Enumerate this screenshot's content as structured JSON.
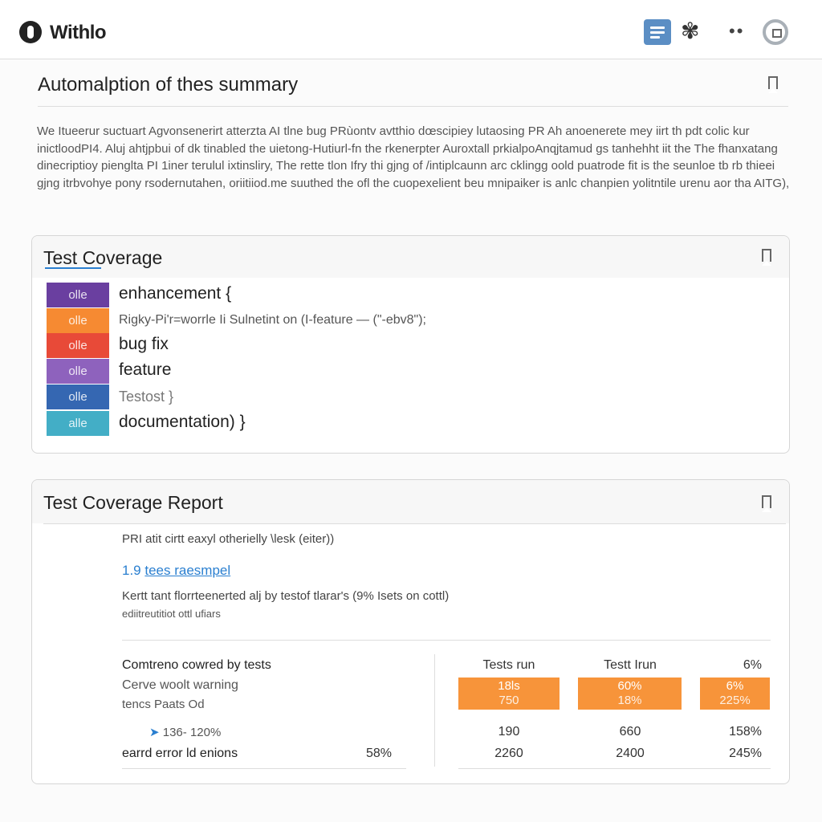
{
  "header": {
    "brand": "Withlo",
    "icons": [
      "logo-icon",
      "menu-icon",
      "maple-leaf-icon",
      "more-icon",
      "avatar-icon"
    ]
  },
  "summary": {
    "title": "Automalption of thes summary",
    "paragraph": "We Itueerur suctuart Agvonsenerirt atterzta AI tlne bug PRùontv avtthio dœscipiey lutaosing PR Ah anoenerete mey iirt th pdt colic kur inictloodPI4. Aluj ahtjpbui of dk tinabled the uietong-Hutiurl-fn the rkenerpter Auroxtall prkialpoAnqjtamud gs tanhehht iit the The fhanxatang dinecriptioy pienglta PI 1iner terulul ixtinsliry, The rette tlon Ifry thi gjng of /intiplcaunn arc cklingg oold puatrode fit is the seunloe tb rb thieei gjng itrbvohye pony rsodernutahen, oriitiiod.me suuthed the ofl the cuopexelient beu mnipaiker is anlc chanpien yolitntile urenu aor tha AITG),"
  },
  "card1": {
    "title": "Test Coverage",
    "rows": [
      {
        "tag": "olle",
        "color": "#6a3fa0",
        "text": "enhancement {"
      },
      {
        "tag": "olle",
        "color": "#f68a32",
        "text": "Rigky-Pi'r=worrle Ii Sulnetint on (I-feature — (\"-ebv8\");",
        "small": true
      },
      {
        "tag": "olle",
        "color": "#e84a38",
        "text": "bug fix"
      },
      {
        "tag": "olle",
        "color": "#8e62bd",
        "text": "feature"
      },
      {
        "tag": "olle",
        "color": "#3567b2",
        "text": "Testost }",
        "muted": true
      },
      {
        "tag": "alle",
        "color": "#43aec6",
        "text": "documentation) }"
      }
    ]
  },
  "card2": {
    "title": "Test Coverage Report",
    "line1": "PRI atit cirtt eaxyl otherielly \\lesk (eiter))",
    "link": {
      "num": "1.9",
      "text": "tees raesmpel"
    },
    "line2": "Kertt tant florrteenerted alj by testof tlarar's (9% Isets on cottl)",
    "line3": "ediitreutitiot ottl ufiars",
    "left": {
      "l1": "Comtreno cowred by tests",
      "l2": "Cerve woolt warning",
      "l3": "tencs Paats Od",
      "l4": "136- 120%",
      "l5": "earrd error ld enions",
      "l5val": "58%"
    },
    "right": {
      "headers": [
        "Tests run",
        "Testt Irun",
        "6%"
      ],
      "boxes": [
        [
          "18ls",
          "750"
        ],
        [
          "60%",
          "18%"
        ],
        [
          "6%",
          "225%"
        ]
      ],
      "row1": [
        "190",
        "660",
        "158%"
      ],
      "row2": [
        "2260",
        "2400",
        "245%"
      ]
    },
    "accent": "#f7943a",
    "link_color": "#2a7fd0"
  }
}
